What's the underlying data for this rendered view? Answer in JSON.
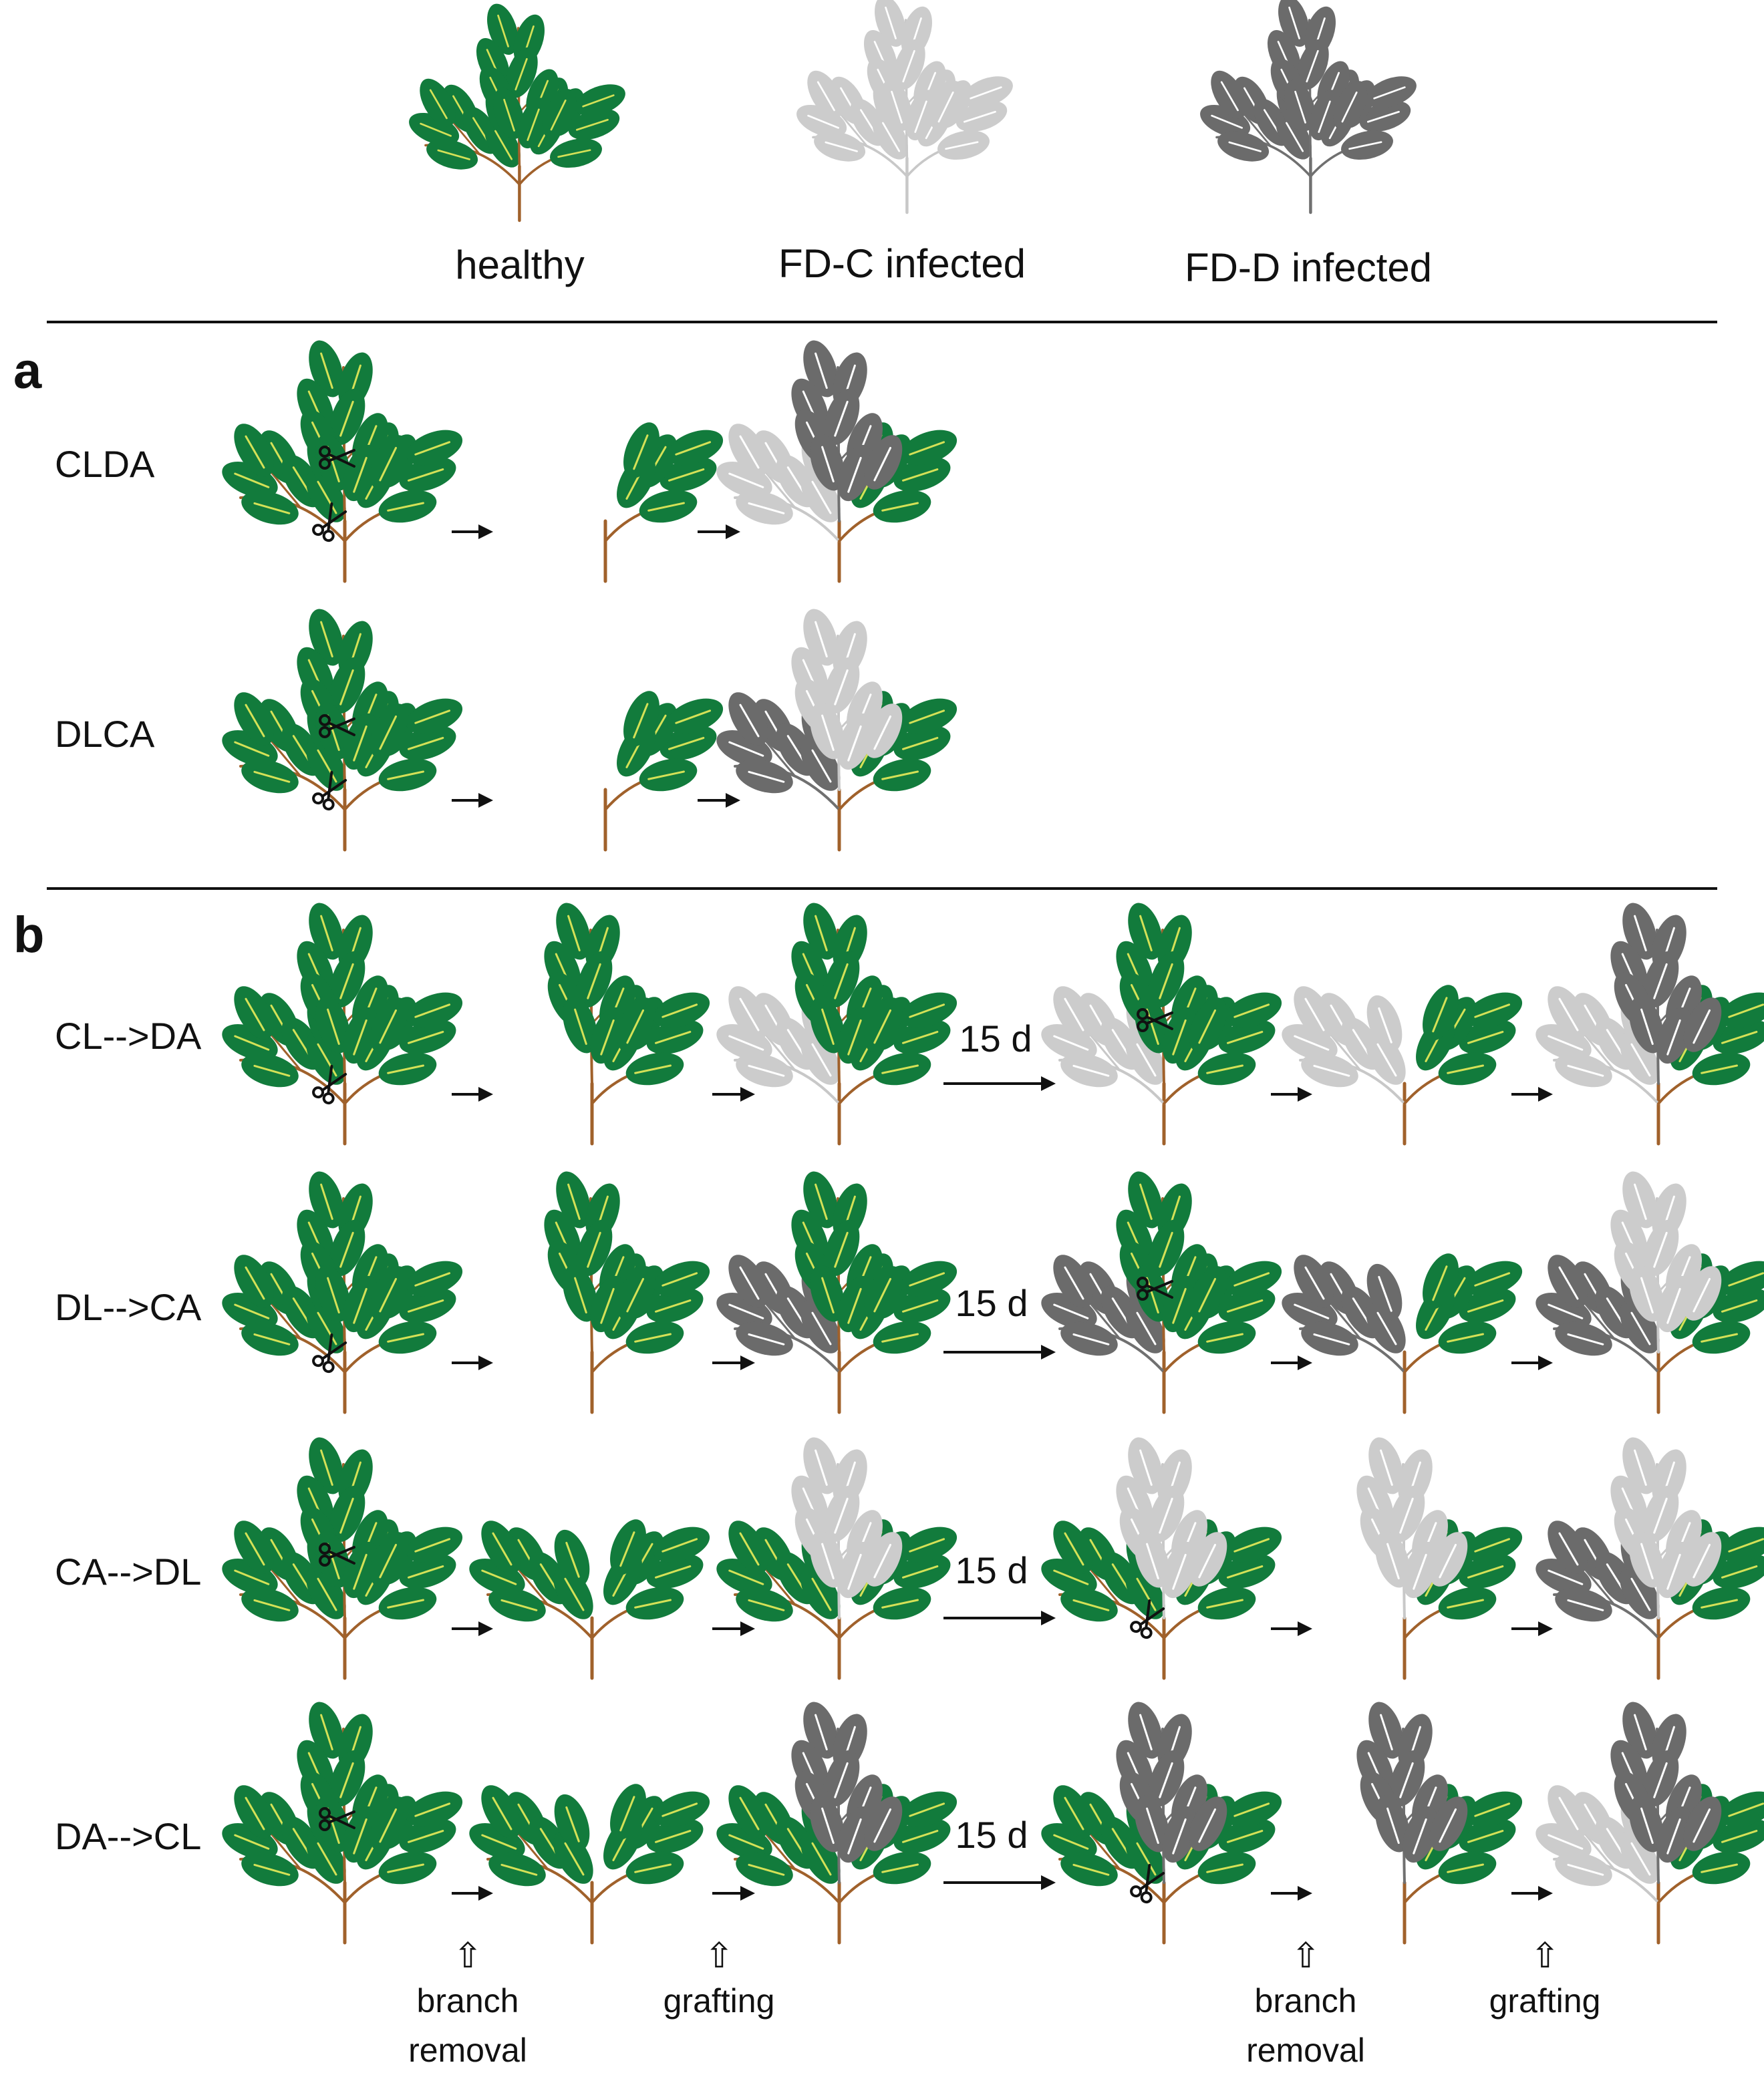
{
  "legend": {
    "healthy": "healthy",
    "fd_c": "FD-C infected",
    "fd_d": "FD-D infected"
  },
  "colors": {
    "healthy_leaf": "#127b3c",
    "healthy_vein": "#d4e157",
    "stem": "#a0612b",
    "fd_c_leaf": "#cccccc",
    "fd_d_leaf": "#6b6b6b",
    "rule": "#111111"
  },
  "panel_a": {
    "label": "a",
    "rows": [
      {
        "name": "CLDA",
        "top": "fd_d",
        "left": "fd_c"
      },
      {
        "name": "DLCA",
        "top": "fd_c",
        "left": "fd_d"
      }
    ]
  },
  "panel_b": {
    "label": "b",
    "interval": "15 d",
    "rows": [
      {
        "name": "CL-->DA",
        "first_graft": "fd_c",
        "first_graft_site": "left",
        "second_graft": "fd_d",
        "second_graft_site": "top"
      },
      {
        "name": "DL-->CA",
        "first_graft": "fd_d",
        "first_graft_site": "left",
        "second_graft": "fd_c",
        "second_graft_site": "top"
      },
      {
        "name": "CA-->DL",
        "first_graft": "fd_c",
        "first_graft_site": "top",
        "second_graft": "fd_d",
        "second_graft_site": "left"
      },
      {
        "name": "DA-->CL",
        "first_graft": "fd_d",
        "first_graft_site": "top",
        "second_graft": "fd_c",
        "second_graft_site": "left"
      }
    ],
    "steps": {
      "branch_removal_1": "branch removal",
      "grafting_1": "grafting",
      "branch_removal_2": "branch removal",
      "grafting_2": "grafting"
    }
  },
  "icons": {
    "scissors": "scissors-icon",
    "arrow": "right-arrow-icon",
    "step_arrow": "up-arrow-icon",
    "up_arrow_glyph": "⇧"
  }
}
